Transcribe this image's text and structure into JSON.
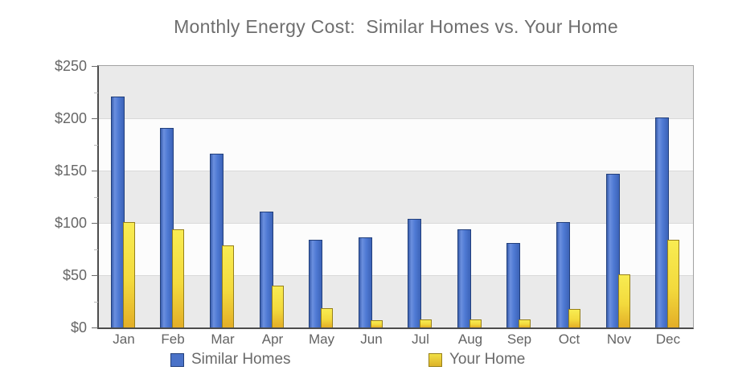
{
  "title": "Monthly Energy Cost:  Similar Homes vs. Your Home",
  "colors": {
    "similar_homes_bar": "#4a74cc",
    "similar_homes_border": "#23407c",
    "your_home_bar": "#f2d838",
    "your_home_border": "#97801a",
    "band_gray": "#eaeaea",
    "band_white": "#fcfcfc",
    "text_gray": "#6a6a6a"
  },
  "chart_data": {
    "type": "bar",
    "title": "Monthly Energy Cost:  Similar Homes vs. Your Home",
    "categories": [
      "Jan",
      "Feb",
      "Mar",
      "Apr",
      "May",
      "Jun",
      "Jul",
      "Aug",
      "Sep",
      "Oct",
      "Nov",
      "Dec"
    ],
    "series": [
      {
        "name": "Similar Homes",
        "color": "#4a74cc",
        "values": [
          220,
          190,
          165,
          110,
          83,
          85,
          103,
          93,
          80,
          100,
          146,
          200
        ]
      },
      {
        "name": "Your Home",
        "color": "#f2d838",
        "values": [
          100,
          93,
          78,
          39,
          18,
          6,
          7,
          7,
          7,
          17,
          50,
          83
        ]
      }
    ],
    "xlabel": "",
    "ylabel": "",
    "ylim": [
      0,
      250
    ],
    "yticks": [
      {
        "value": 0,
        "label": "$0"
      },
      {
        "value": 50,
        "label": "$50"
      },
      {
        "value": 100,
        "label": "$100"
      },
      {
        "value": 150,
        "label": "$150"
      },
      {
        "value": 200,
        "label": "$200"
      },
      {
        "value": 250,
        "label": "$250"
      }
    ],
    "minor_tick_interval": 25,
    "grid": "horizontal gridlines with alternating gray/white bands every $50",
    "legend_position": "bottom"
  }
}
